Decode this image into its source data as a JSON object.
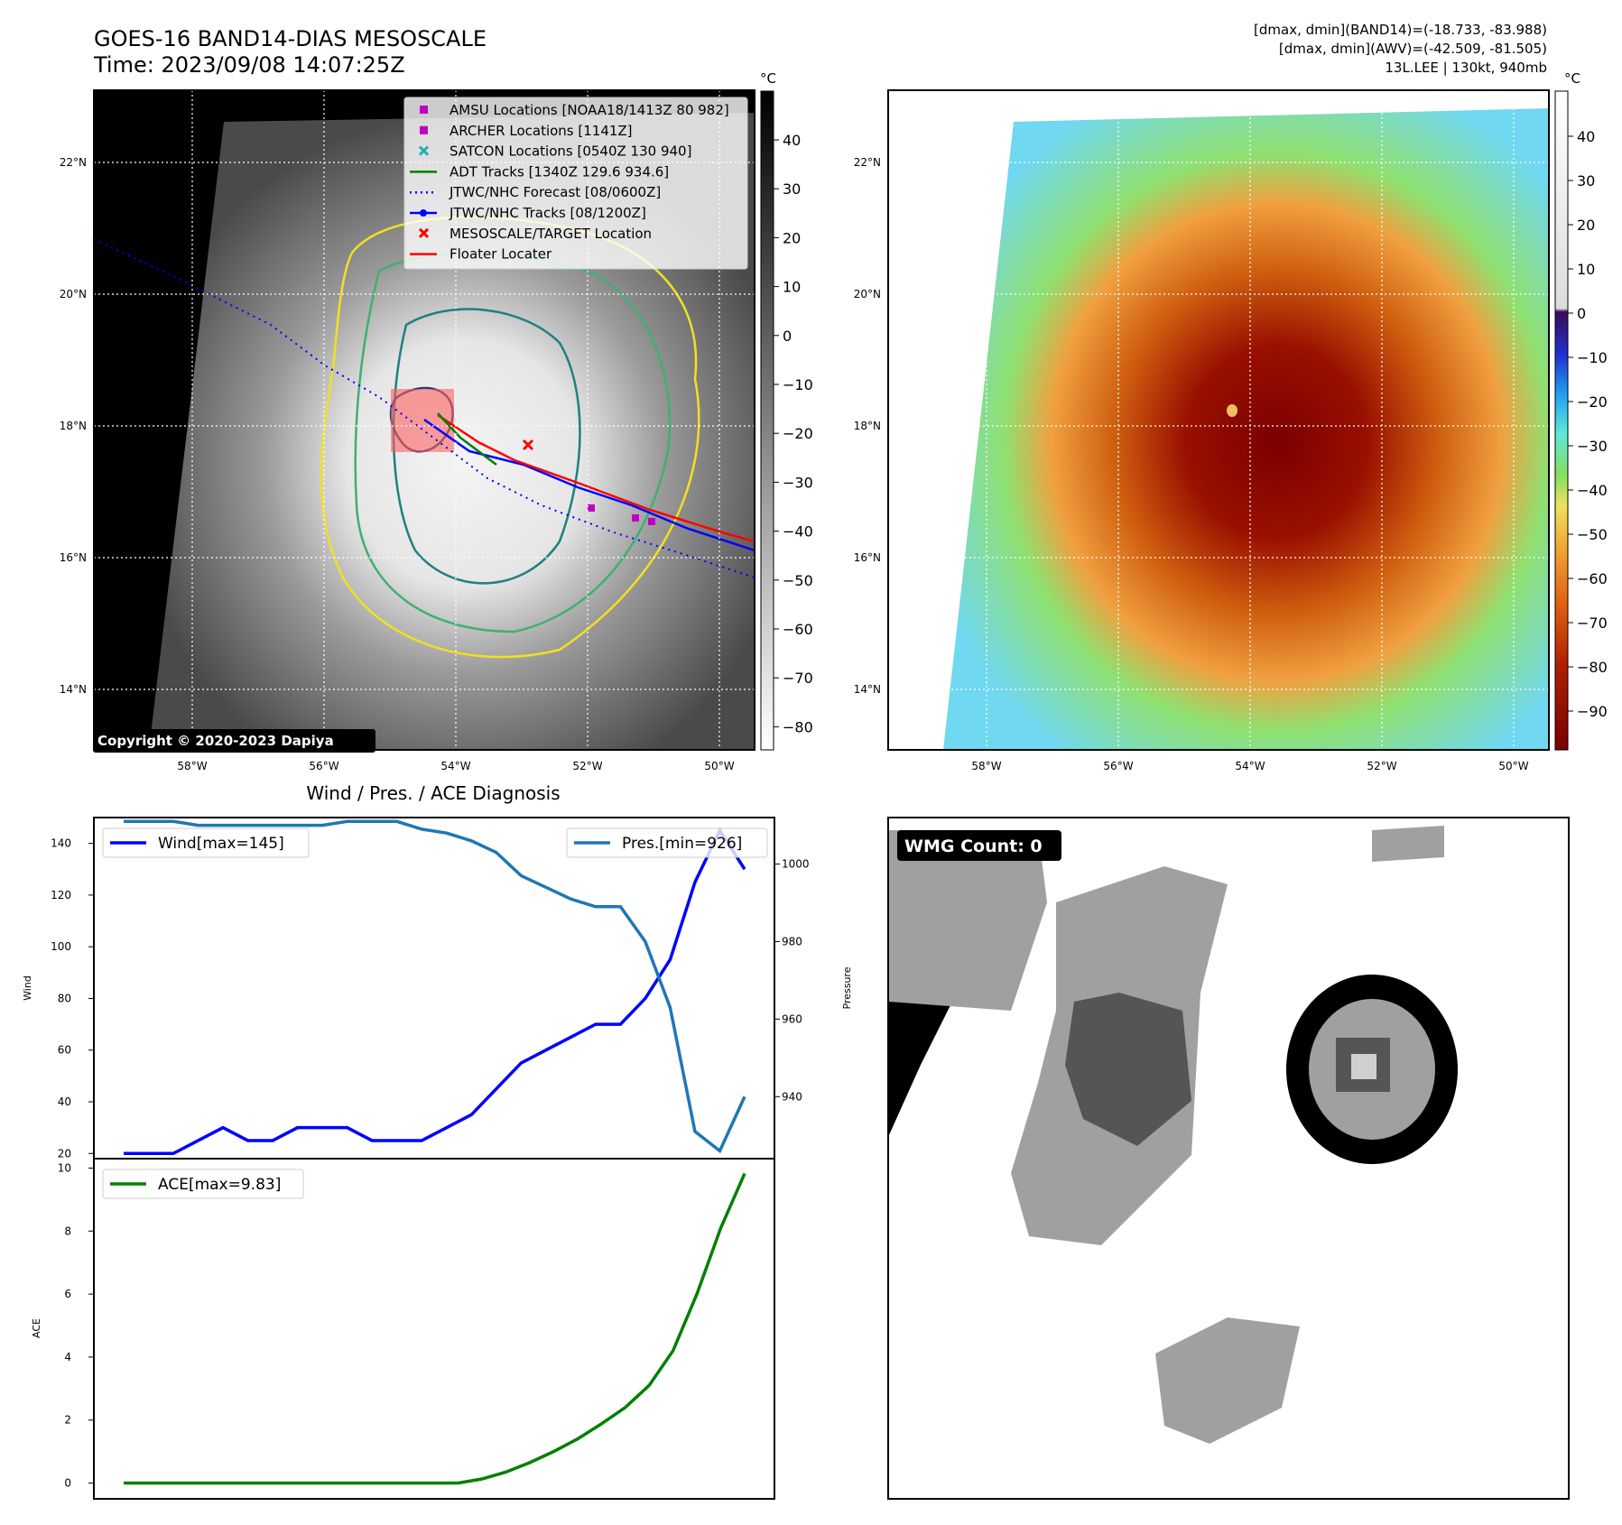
{
  "header": {
    "title": "GOES-16 BAND14-DIAS MESOSCALE",
    "time": "Time: 2023/09/08 14:07:25Z",
    "right_line1": "[dmax, dmin](BAND14)=(-18.733, -83.988)",
    "right_line2": "[dmax, dmin](AWV)=(-42.509, -81.505)",
    "right_line3": "13L.LEE | 130kt, 940mb"
  },
  "map_left": {
    "copyright": "Copyright © 2020-2023 Dapiya",
    "lat_labels": [
      "22°N",
      "20°N",
      "18°N",
      "16°N",
      "14°N"
    ],
    "lon_labels": [
      "58°W",
      "56°W",
      "54°W",
      "52°W",
      "50°W"
    ],
    "colorbar_unit": "°C",
    "colorbar_ticks": [
      "40",
      "30",
      "20",
      "10",
      "0",
      "−10",
      "−20",
      "−30",
      "−40",
      "−50",
      "−60",
      "−70",
      "−80"
    ],
    "legend": [
      {
        "label": "AMSU Locations [NOAA18/1413Z 80 982]",
        "color": "#c000c0",
        "marker": "square"
      },
      {
        "label": "ARCHER Locations [1141Z]",
        "color": "#c000c0",
        "marker": "square"
      },
      {
        "label": "SATCON Locations [0540Z 130 940]",
        "color": "#20b0b0",
        "marker": "x"
      },
      {
        "label": "ADT Tracks [1340Z 129.6 934.6]",
        "color": "#008000",
        "marker": "line"
      },
      {
        "label": "JTWC/NHC Forecast [08/0600Z]",
        "color": "#0000ff",
        "marker": "dotted"
      },
      {
        "label": "JTWC/NHC Tracks [08/1200Z]",
        "color": "#0000ff",
        "marker": "line-dot"
      },
      {
        "label": "MESOSCALE/TARGET Location",
        "color": "#ff0000",
        "marker": "x"
      },
      {
        "label": "Floater Locater",
        "color": "#ff0000",
        "marker": "line"
      }
    ]
  },
  "map_right": {
    "lat_labels": [
      "22°N",
      "20°N",
      "18°N",
      "16°N",
      "14°N"
    ],
    "lon_labels": [
      "58°W",
      "56°W",
      "54°W",
      "52°W",
      "50°W"
    ],
    "colorbar_unit": "°C",
    "colorbar_ticks": [
      "40",
      "30",
      "20",
      "10",
      "0",
      "−10",
      "−20",
      "−30",
      "−40",
      "−50",
      "−60",
      "−70",
      "−80",
      "−90"
    ]
  },
  "wmg": {
    "label": "WMG Count: 0"
  },
  "colors": {
    "wind": "#0000ff",
    "pressure": "#1f77b4",
    "ace": "#008000"
  },
  "chart_data": [
    {
      "type": "line",
      "title": "Wind / Pres. / ACE Diagnosis",
      "ylabel": "Wind",
      "y2label": "Pressure",
      "ylim": [
        18,
        150
      ],
      "y2lim": [
        924,
        1012
      ],
      "yticks": [
        20,
        40,
        60,
        80,
        100,
        120,
        140
      ],
      "y2ticks": [
        940,
        960,
        980,
        1000
      ],
      "series": [
        {
          "name": "Wind[max=145]",
          "axis": "left",
          "values": [
            20,
            20,
            20,
            25,
            30,
            25,
            25,
            30,
            30,
            30,
            25,
            25,
            25,
            30,
            35,
            45,
            55,
            60,
            65,
            70,
            70,
            80,
            95,
            125,
            145,
            130
          ]
        },
        {
          "name": "Pres.[min=926]",
          "axis": "right",
          "values": [
            1011,
            1011,
            1011,
            1010,
            1010,
            1010,
            1010,
            1010,
            1010,
            1011,
            1011,
            1011,
            1009,
            1008,
            1006,
            1003,
            997,
            994,
            991,
            989,
            989,
            980,
            963,
            931,
            926,
            940
          ]
        }
      ]
    },
    {
      "type": "line",
      "ylabel": "ACE",
      "ylim": [
        -0.5,
        10.3
      ],
      "yticks": [
        0,
        2,
        4,
        6,
        8,
        10
      ],
      "series": [
        {
          "name": "ACE[max=9.83]",
          "values": [
            0,
            0,
            0,
            0,
            0,
            0,
            0,
            0,
            0,
            0,
            0,
            0,
            0,
            0,
            0,
            0.13,
            0.35,
            0.65,
            1.0,
            1.4,
            1.88,
            2.4,
            3.1,
            4.2,
            6.0,
            8.1,
            9.83
          ]
        }
      ]
    }
  ]
}
